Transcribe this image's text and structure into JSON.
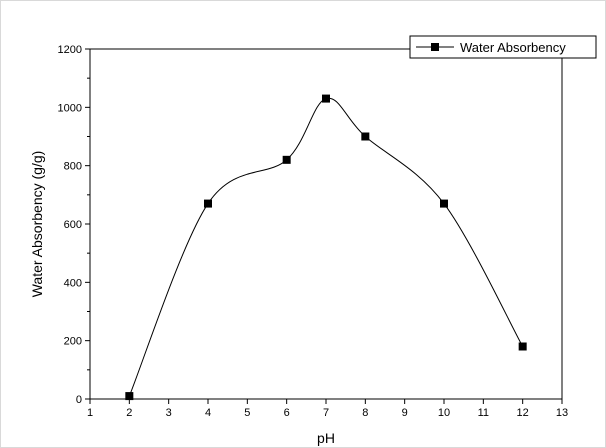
{
  "chart_data": {
    "type": "line",
    "title": "",
    "xlabel": "pH",
    "ylabel": "Water Absorbency (g/g)",
    "xlim": [
      1,
      13
    ],
    "ylim": [
      0,
      1200
    ],
    "x_ticks": [
      "1",
      "2",
      "3",
      "4",
      "5",
      "6",
      "7",
      "8",
      "9",
      "10",
      "11",
      "12",
      "13"
    ],
    "y_ticks": [
      "0",
      "200",
      "400",
      "600",
      "800",
      "1000",
      "1200"
    ],
    "grid": false,
    "legend_position": "top-right",
    "series": [
      {
        "name": "Water Absorbency",
        "marker": "square",
        "line": "smooth",
        "color": "#000000",
        "x": [
          2,
          4,
          6,
          7,
          8,
          10,
          12
        ],
        "y": [
          10,
          670,
          820,
          1030,
          900,
          670,
          180
        ]
      }
    ]
  }
}
